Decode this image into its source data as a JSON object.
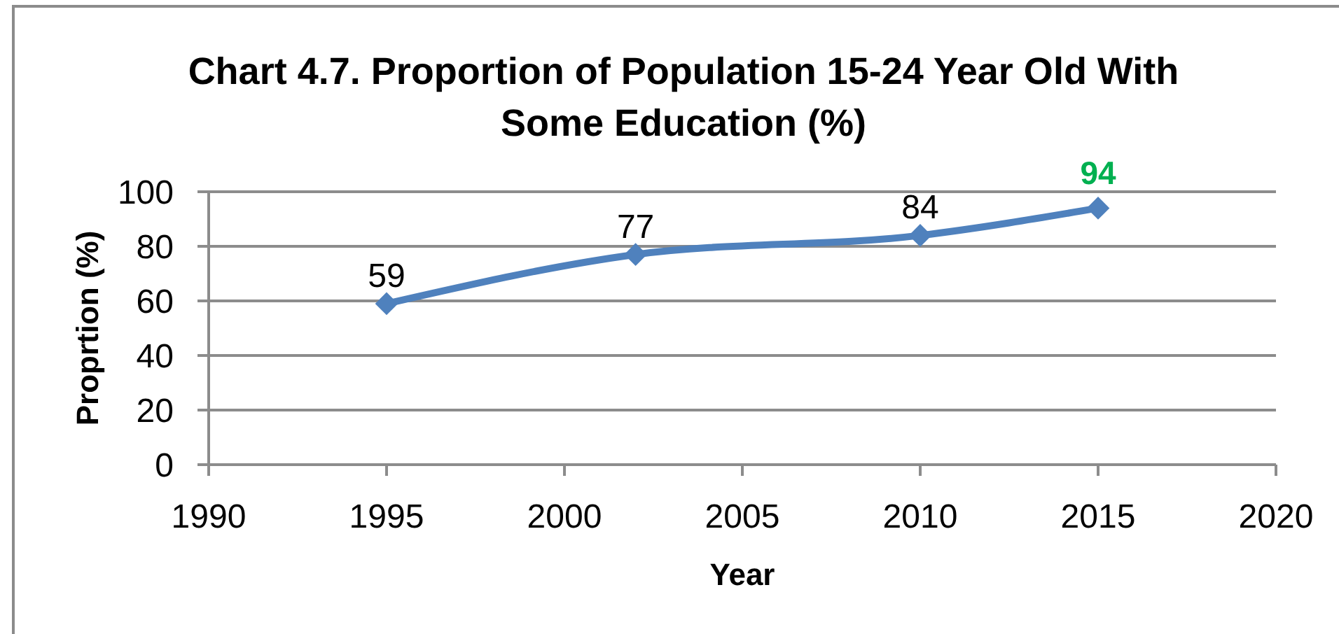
{
  "chart_data": {
    "type": "line",
    "title": "Chart 4.7. Proportion of Population 15-24 Year Old With Some Education (%)",
    "xlabel": "Year",
    "ylabel": "Proprtion (%)",
    "x": [
      1995,
      2002,
      2010,
      2015
    ],
    "series": [
      {
        "color": "#4f81bd",
        "values": [
          59,
          77,
          84,
          94
        ],
        "value_labels": [
          "59",
          "77",
          "84",
          null
        ]
      }
    ],
    "annotations": [
      {
        "text": "94",
        "x": 2015,
        "y": 94
      }
    ],
    "xlim": [
      1990,
      2020
    ],
    "xticks": [
      1990,
      1995,
      2000,
      2005,
      2010,
      2015,
      2020
    ],
    "ylim": [
      0,
      100
    ],
    "yticks": [
      0,
      20,
      40,
      60,
      80,
      100
    ],
    "grid": "y",
    "marker": "diamond",
    "line_style": "solid"
  }
}
